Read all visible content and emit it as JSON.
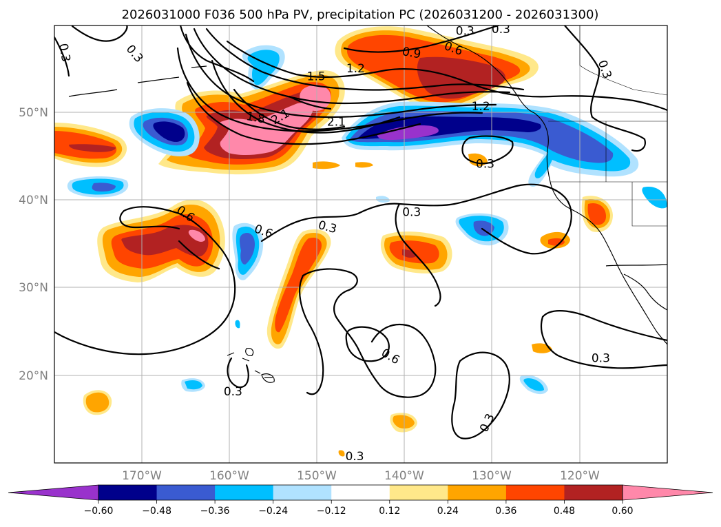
{
  "title": "2026031000 F036 500 hPa PV, precipitation PC (2026031200 - 2026031300)",
  "map": {
    "lon_min": -180,
    "lon_max": -110,
    "lat_min": 10,
    "lat_max": 60,
    "lat_ticks": [
      {
        "value": 50,
        "label": "50°N"
      },
      {
        "value": 40,
        "label": "40°N"
      },
      {
        "value": 30,
        "label": "30°N"
      },
      {
        "value": 20,
        "label": "20°N"
      }
    ],
    "lon_ticks": [
      {
        "value": -170,
        "label": "170°W"
      },
      {
        "value": -160,
        "label": "160°W"
      },
      {
        "value": -150,
        "label": "150°W"
      },
      {
        "value": -140,
        "label": "140°W"
      },
      {
        "value": -130,
        "label": "130°W"
      },
      {
        "value": -120,
        "label": "120°W"
      }
    ]
  },
  "pv_contour_labels": [
    {
      "text": "0.3",
      "lon": -178.8,
      "lat": 56.9,
      "angle": 80
    },
    {
      "text": "0.3",
      "lon": -170.8,
      "lat": 56.8,
      "angle": 50
    },
    {
      "text": "0.3",
      "lon": -133.1,
      "lat": 59.4,
      "angle": 0
    },
    {
      "text": "0.3",
      "lon": -129.0,
      "lat": 59.6,
      "angle": 0
    },
    {
      "text": "0.3",
      "lon": -117.1,
      "lat": 55.0,
      "angle": 70
    },
    {
      "text": "0.6",
      "lon": -134.4,
      "lat": 57.4,
      "angle": 20
    },
    {
      "text": "0.9",
      "lon": -139.2,
      "lat": 56.9,
      "angle": 10
    },
    {
      "text": "1.2",
      "lon": -145.6,
      "lat": 55.1,
      "angle": 0
    },
    {
      "text": "1.5",
      "lon": -150.1,
      "lat": 54.2,
      "angle": 0
    },
    {
      "text": "1.8",
      "lon": -157.0,
      "lat": 49.5,
      "angle": 10
    },
    {
      "text": "2.1",
      "lon": -154.2,
      "lat": 49.6,
      "angle": -30
    },
    {
      "text": "2.1",
      "lon": -147.8,
      "lat": 49.0,
      "angle": 0
    },
    {
      "text": "1.2",
      "lon": -131.3,
      "lat": 50.8,
      "angle": 0
    },
    {
      "text": "0.3",
      "lon": -130.8,
      "lat": 44.2,
      "angle": 0
    },
    {
      "text": "0.6",
      "lon": -165.0,
      "lat": 38.5,
      "angle": 35
    },
    {
      "text": "0.6",
      "lon": -156.1,
      "lat": 36.5,
      "angle": 20
    },
    {
      "text": "0.3",
      "lon": -148.8,
      "lat": 37.0,
      "angle": 15
    },
    {
      "text": "0.3",
      "lon": -139.2,
      "lat": 38.7,
      "angle": 0
    },
    {
      "text": "0.6",
      "lon": -141.6,
      "lat": 22.2,
      "angle": 30
    },
    {
      "text": "0.3",
      "lon": -130.6,
      "lat": 14.6,
      "angle": -65
    },
    {
      "text": "0.3",
      "lon": -159.6,
      "lat": 18.2,
      "angle": 0
    },
    {
      "text": "0.3",
      "lon": -117.6,
      "lat": 22.0,
      "angle": 0
    },
    {
      "text": "0.3",
      "lon": -145.7,
      "lat": 10.8,
      "angle": 0
    }
  ],
  "colorbar": {
    "levels": [
      -0.72,
      -0.6,
      -0.48,
      -0.36,
      -0.24,
      -0.12,
      0.12,
      0.24,
      0.36,
      0.48,
      0.6,
      0.72
    ],
    "colors": [
      "#9932cc",
      "#00008b",
      "#3a5bd1",
      "#00bfff",
      "#b0e2ff",
      "#ffffff",
      "#ffe88a",
      "#ffa500",
      "#ff4500",
      "#b22222",
      "#ff88aa"
    ],
    "under_color": "#9932cc",
    "over_color": "#ff88aa",
    "ticks": [
      {
        "value": -0.6,
        "label": "−0.60"
      },
      {
        "value": -0.48,
        "label": "−0.48"
      },
      {
        "value": -0.36,
        "label": "−0.36"
      },
      {
        "value": -0.24,
        "label": "−0.24"
      },
      {
        "value": -0.12,
        "label": "−0.12"
      },
      {
        "value": 0.12,
        "label": "0.12"
      },
      {
        "value": 0.24,
        "label": "0.24"
      },
      {
        "value": 0.36,
        "label": "0.36"
      },
      {
        "value": 0.48,
        "label": "0.48"
      },
      {
        "value": 0.6,
        "label": "0.60"
      }
    ]
  }
}
